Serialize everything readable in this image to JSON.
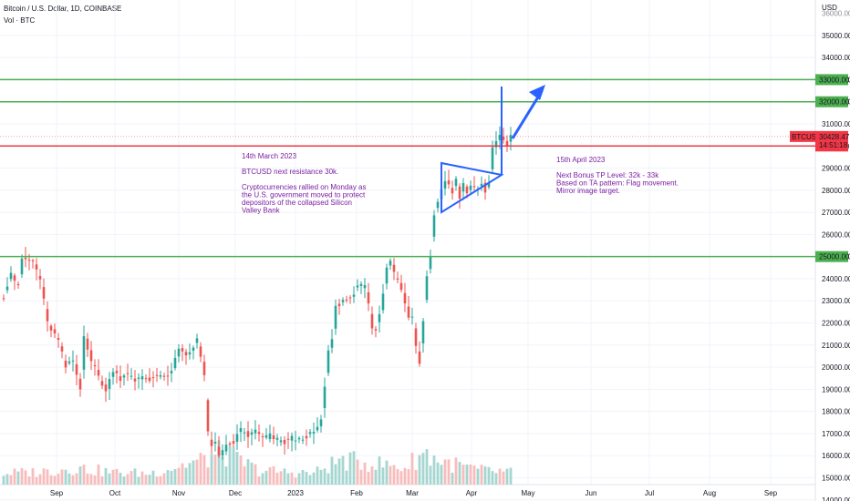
{
  "header": {
    "symbol_line": "Bitcoin / U.S. Dollar, 1D, COINBASE",
    "volume_label": "Vol · BTC"
  },
  "chart_data": {
    "type": "candlestick",
    "currency": "USD",
    "y_ticks": [
      14000,
      15000,
      16000,
      17000,
      18000,
      19000,
      20000,
      21000,
      22000,
      23000,
      24000,
      25000,
      26000,
      27000,
      28000,
      29000,
      31000,
      32000,
      33000,
      34000,
      35000
    ],
    "y_top_partial": "36000.00",
    "ylim": [
      13950,
      36600
    ],
    "x_ticks": [
      "Sep",
      "Oct",
      "Nov",
      "Dec",
      "2023",
      "Feb",
      "Mar",
      "Apr",
      "May",
      "Jun",
      "Jul",
      "Aug",
      "Sep"
    ],
    "price_path": [
      [
        0,
        23200
      ],
      [
        2,
        24300
      ],
      [
        4,
        23600
      ],
      [
        5,
        24900
      ],
      [
        8,
        24800
      ],
      [
        10,
        24000
      ],
      [
        12,
        22000
      ],
      [
        15,
        21200
      ],
      [
        17,
        20000
      ],
      [
        19,
        20300
      ],
      [
        21,
        19000
      ],
      [
        22,
        21500
      ],
      [
        24,
        20300
      ],
      [
        26,
        19600
      ],
      [
        28,
        18900
      ],
      [
        30,
        19900
      ],
      [
        32,
        19500
      ],
      [
        34,
        19800
      ],
      [
        36,
        19300
      ],
      [
        38,
        19600
      ],
      [
        40,
        19400
      ],
      [
        42,
        19700
      ],
      [
        45,
        19500
      ],
      [
        47,
        20300
      ],
      [
        48,
        20800
      ],
      [
        50,
        20500
      ],
      [
        52,
        20900
      ],
      [
        53,
        21400
      ],
      [
        55,
        19600
      ],
      [
        56,
        17000
      ],
      [
        57,
        16400
      ],
      [
        58,
        16700
      ],
      [
        59,
        15900
      ],
      [
        61,
        16400
      ],
      [
        63,
        16600
      ],
      [
        65,
        17200
      ],
      [
        67,
        16900
      ],
      [
        69,
        17100
      ],
      [
        71,
        16800
      ],
      [
        73,
        16900
      ],
      [
        75,
        16700
      ],
      [
        77,
        16600
      ],
      [
        79,
        16800
      ],
      [
        81,
        16700
      ],
      [
        83,
        16900
      ],
      [
        85,
        17000
      ],
      [
        87,
        17600
      ],
      [
        88,
        19000
      ],
      [
        89,
        20800
      ],
      [
        90,
        21200
      ],
      [
        91,
        22700
      ],
      [
        93,
        23000
      ],
      [
        95,
        23100
      ],
      [
        97,
        23700
      ],
      [
        99,
        23600
      ],
      [
        100,
        23000
      ],
      [
        101,
        21800
      ],
      [
        102,
        21700
      ],
      [
        103,
        22300
      ],
      [
        104,
        23200
      ],
      [
        105,
        24400
      ],
      [
        106,
        24800
      ],
      [
        107,
        24200
      ],
      [
        108,
        24000
      ],
      [
        109,
        23400
      ],
      [
        110,
        23000
      ],
      [
        111,
        22300
      ],
      [
        112,
        22200
      ],
      [
        113,
        21000
      ],
      [
        114,
        20200
      ],
      [
        115,
        22100
      ],
      [
        116,
        24200
      ],
      [
        117,
        25100
      ],
      [
        118,
        26900
      ],
      [
        119,
        27400
      ],
      [
        120,
        28000
      ],
      [
        121,
        28400
      ],
      [
        122,
        28200
      ],
      [
        123,
        27900
      ],
      [
        124,
        28500
      ],
      [
        125,
        27600
      ],
      [
        126,
        28300
      ],
      [
        127,
        27900
      ],
      [
        128,
        28300
      ],
      [
        129,
        28200
      ],
      [
        130,
        28100
      ],
      [
        131,
        28400
      ],
      [
        132,
        28000
      ],
      [
        133,
        28400
      ],
      [
        134,
        29900
      ],
      [
        135,
        30300
      ],
      [
        136,
        30500
      ],
      [
        137,
        30300
      ],
      [
        138,
        30100
      ],
      [
        139,
        30428
      ]
    ],
    "volume_path": [
      [
        0,
        0.28
      ],
      [
        10,
        0.32
      ],
      [
        20,
        0.42
      ],
      [
        30,
        0.3
      ],
      [
        40,
        0.28
      ],
      [
        55,
        0.62
      ],
      [
        60,
        0.8
      ],
      [
        70,
        0.35
      ],
      [
        85,
        0.28
      ],
      [
        92,
        0.6
      ],
      [
        100,
        0.55
      ],
      [
        110,
        0.42
      ],
      [
        115,
        0.8
      ],
      [
        120,
        0.58
      ],
      [
        130,
        0.36
      ],
      [
        139,
        0.3
      ]
    ],
    "last_price": {
      "value": 30428.47,
      "label": "30428.47",
      "symbol": "BTCUSD",
      "countdown": "14:51:18"
    },
    "levels": [
      {
        "value": 33000,
        "label": "33000.00",
        "color": "#4caf50"
      },
      {
        "value": 32000,
        "label": "32000.00",
        "color": "#4caf50"
      },
      {
        "value": 30000,
        "label": "30000.00",
        "color": "#f23645"
      },
      {
        "value": 25000,
        "label": "25000.00",
        "color": "#4caf50"
      }
    ],
    "annotations": {
      "left": [
        "14th March 2023",
        "",
        "BTCUSD next resistance 30k.",
        "",
        "Cryptocurrencies rallied on Monday as",
        "the U.S. government moved to protect",
        "depositors of the collapsed Silicon",
        "Valley Bank"
      ],
      "right": [
        "15th April 2023",
        "",
        "Next Bonus TP Level: 32k - 33k",
        "Based on TA pattern: Flag movement.",
        "Mirror image target."
      ]
    },
    "colors": {
      "up": "#26a69a",
      "down": "#ef5350",
      "volume_up": "#a5d6d0",
      "volume_down": "#f8bcbc",
      "drawing": "#2962ff",
      "text": "#7b1fa2",
      "grid": "#f0f3fa"
    }
  }
}
